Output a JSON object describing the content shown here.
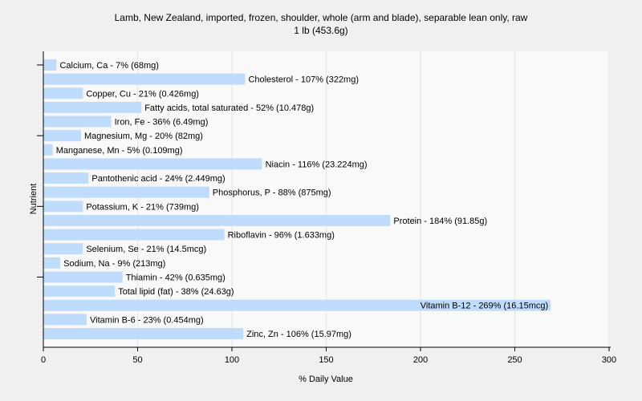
{
  "chart_data": {
    "type": "bar",
    "orientation": "horizontal",
    "title": "Lamb, New Zealand, imported, frozen, shoulder, whole (arm and blade), separable lean only, raw",
    "subtitle": "1 lb (453.6g)",
    "xlabel": "% Daily Value",
    "ylabel": "Nutrient",
    "xlim": [
      0,
      300
    ],
    "xticks": [
      0,
      50,
      100,
      150,
      200,
      250,
      300
    ],
    "grid": true,
    "bar_color": "#c0dcfc",
    "categories": [
      "Calcium, Ca",
      "Cholesterol",
      "Copper, Cu",
      "Fatty acids, total saturated",
      "Iron, Fe",
      "Magnesium, Mg",
      "Manganese, Mn",
      "Niacin",
      "Pantothenic acid",
      "Phosphorus, P",
      "Potassium, K",
      "Protein",
      "Riboflavin",
      "Selenium, Se",
      "Sodium, Na",
      "Thiamin",
      "Total lipid (fat)",
      "Vitamin B-12",
      "Vitamin B-6",
      "Zinc, Zn"
    ],
    "values": [
      7,
      107,
      21,
      52,
      36,
      20,
      5,
      116,
      24,
      88,
      21,
      184,
      96,
      21,
      9,
      42,
      38,
      269,
      23,
      106
    ],
    "labels": [
      "Calcium, Ca - 7% (68mg)",
      "Cholesterol - 107% (322mg)",
      "Copper, Cu - 21% (0.426mg)",
      "Fatty acids, total saturated - 52% (10.478g)",
      "Iron, Fe - 36% (6.49mg)",
      "Magnesium, Mg - 20% (82mg)",
      "Manganese, Mn - 5% (0.109mg)",
      "Niacin - 116% (23.224mg)",
      "Pantothenic acid - 24% (2.449mg)",
      "Phosphorus, P - 88% (875mg)",
      "Potassium, K - 21% (739mg)",
      "Protein - 184% (91.85g)",
      "Riboflavin - 96% (1.633mg)",
      "Selenium, Se - 21% (14.5mcg)",
      "Sodium, Na - 9% (213mg)",
      "Thiamin - 42% (0.635mg)",
      "Total lipid (fat) - 38% (24.63g)",
      "Vitamin B-12 - 269% (16.15mcg)",
      "Vitamin B-6 - 23% (0.454mg)",
      "Zinc, Zn - 106% (15.97mg)"
    ]
  }
}
